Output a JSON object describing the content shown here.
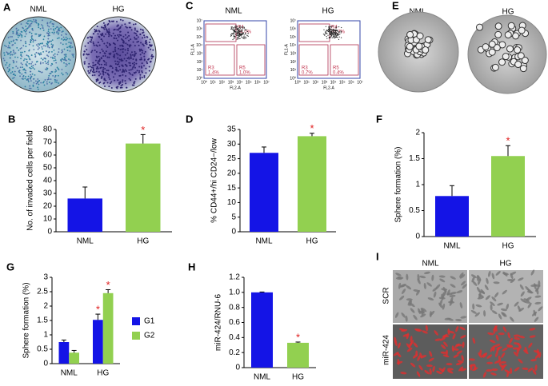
{
  "chart_data": [
    {
      "type": "bar",
      "panel": "B",
      "ylabel": "No. of invaded cells per field",
      "categories": [
        "NML",
        "HG"
      ],
      "values": [
        26,
        69
      ],
      "errors": [
        9,
        7
      ],
      "colors": [
        "#1414e6",
        "#92d050"
      ],
      "ylim": [
        0,
        80
      ],
      "yticks": [
        0,
        10,
        20,
        30,
        40,
        50,
        60,
        70,
        80
      ],
      "annotations": [
        {
          "text": "*",
          "index": 1
        }
      ]
    },
    {
      "type": "bar",
      "panel": "D",
      "ylabel": "% CD44+/hi CD24−/low",
      "categories": [
        "NML",
        "HG"
      ],
      "values": [
        27,
        32.7
      ],
      "errors": [
        2,
        1
      ],
      "colors": [
        "#1414e6",
        "#92d050"
      ],
      "ylim": [
        0,
        35
      ],
      "yticks": [
        0,
        5,
        10,
        15,
        20,
        25,
        30,
        35
      ],
      "annotations": [
        {
          "text": "*",
          "index": 1
        }
      ]
    },
    {
      "type": "bar",
      "panel": "F",
      "ylabel": "Sphere formation (%)",
      "categories": [
        "NML",
        "HG"
      ],
      "values": [
        0.78,
        1.55
      ],
      "errors": [
        0.2,
        0.2
      ],
      "colors": [
        "#1414e6",
        "#92d050"
      ],
      "ylim": [
        0,
        2
      ],
      "yticks": [
        0,
        0.5,
        1,
        1.5,
        2
      ],
      "annotations": [
        {
          "text": "*",
          "index": 1
        }
      ]
    },
    {
      "type": "bar",
      "panel": "G",
      "ylabel": "Sphere formation (%)",
      "categories": [
        "NML",
        "HG"
      ],
      "series": [
        {
          "name": "G1",
          "color": "#1414e6",
          "values": [
            0.75,
            1.52
          ],
          "errors": [
            0.07,
            0.2
          ]
        },
        {
          "name": "G2",
          "color": "#92d050",
          "values": [
            0.38,
            2.45
          ],
          "errors": [
            0.08,
            0.12
          ]
        }
      ],
      "ylim": [
        0,
        3
      ],
      "yticks": [
        0,
        0.5,
        1,
        1.5,
        2,
        2.5,
        3
      ],
      "legend": "right",
      "annotations": [
        {
          "text": "*",
          "series": 0,
          "index": 1
        },
        {
          "text": "*",
          "series": 1,
          "index": 1
        }
      ]
    },
    {
      "type": "bar",
      "panel": "H",
      "ylabel": "miR-424/RNU-6",
      "categories": [
        "NML",
        "HG"
      ],
      "values": [
        1.0,
        0.33
      ],
      "errors": [
        0.005,
        0.01
      ],
      "colors": [
        "#1414e6",
        "#92d050"
      ],
      "ylim": [
        0,
        1.2
      ],
      "yticks": [
        0,
        0.2,
        0.4,
        0.6,
        0.8,
        {
          "value": 1,
          "label": "1.0"
        },
        1.2
      ],
      "annotations": [
        {
          "text": "*",
          "index": 1
        }
      ]
    }
  ],
  "image_panels": {
    "A": {
      "letter": "A",
      "labels": [
        "NML",
        "HG"
      ]
    },
    "C": {
      "letter": "C",
      "labels": [
        "NML",
        "HG"
      ],
      "xlabel": "FL2-A",
      "ylabel": "FL1-A",
      "ticks": [
        "10⁰",
        "10¹",
        "10²",
        "10³",
        "10⁴",
        "10⁵",
        "10⁶",
        "10⁷"
      ],
      "gates": [
        [
          {
            "name": "R4",
            "pct": "24.0%"
          },
          {
            "name": "R3",
            "pct": "1.4%"
          },
          {
            "name": "R5",
            "pct": "1.0%"
          }
        ],
        [
          {
            "name": "R4",
            "pct": "33.7%"
          },
          {
            "name": "R3",
            "pct": "0.7%"
          },
          {
            "name": "R5",
            "pct": "0.4%"
          }
        ]
      ]
    },
    "E": {
      "letter": "E",
      "labels": [
        "NML",
        "HG"
      ]
    },
    "I": {
      "letter": "I",
      "columns": [
        "NML",
        "HG"
      ],
      "rows": [
        "SCR",
        "miR-424"
      ]
    }
  }
}
